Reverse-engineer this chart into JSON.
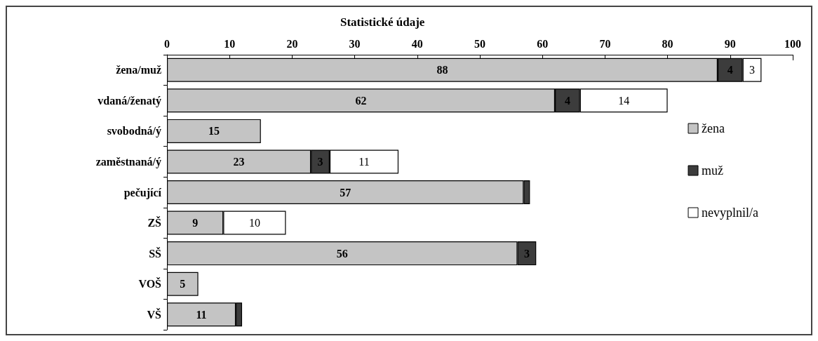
{
  "chart_data": {
    "type": "bar",
    "orientation": "horizontal",
    "stacked": true,
    "title": "Statistické údaje",
    "categories": [
      "žena/muž",
      "vdaná/ženatý",
      "svobodná/ý",
      "zaměstnaná/ý",
      "pečující",
      "ZŠ",
      "SŠ",
      "VOŠ",
      "VŠ"
    ],
    "series": [
      {
        "name": "žena",
        "color": "#c4c4c4",
        "values": [
          88,
          62,
          15,
          23,
          57,
          9,
          56,
          5,
          11
        ],
        "value_labels": [
          "88",
          "62",
          "15",
          "23",
          "57",
          "9",
          "56",
          "5",
          "11"
        ]
      },
      {
        "name": "muž",
        "color": "#3c3c3c",
        "values": [
          4,
          4,
          null,
          3,
          1,
          null,
          3,
          null,
          1
        ],
        "value_labels": [
          "4",
          "4",
          null,
          "3",
          null,
          null,
          "3",
          null,
          null
        ]
      },
      {
        "name": "nevyplnil/a",
        "color": "#ffffff",
        "values": [
          3,
          14,
          null,
          11,
          null,
          10,
          null,
          null,
          null
        ],
        "value_labels": [
          "3",
          "14",
          null,
          "11",
          null,
          "10",
          null,
          null,
          null
        ]
      }
    ],
    "xlim": [
      0,
      100
    ],
    "xticks": [
      0,
      10,
      20,
      30,
      40,
      50,
      60,
      70,
      80,
      90,
      100
    ],
    "grid": false,
    "legend": "right"
  }
}
